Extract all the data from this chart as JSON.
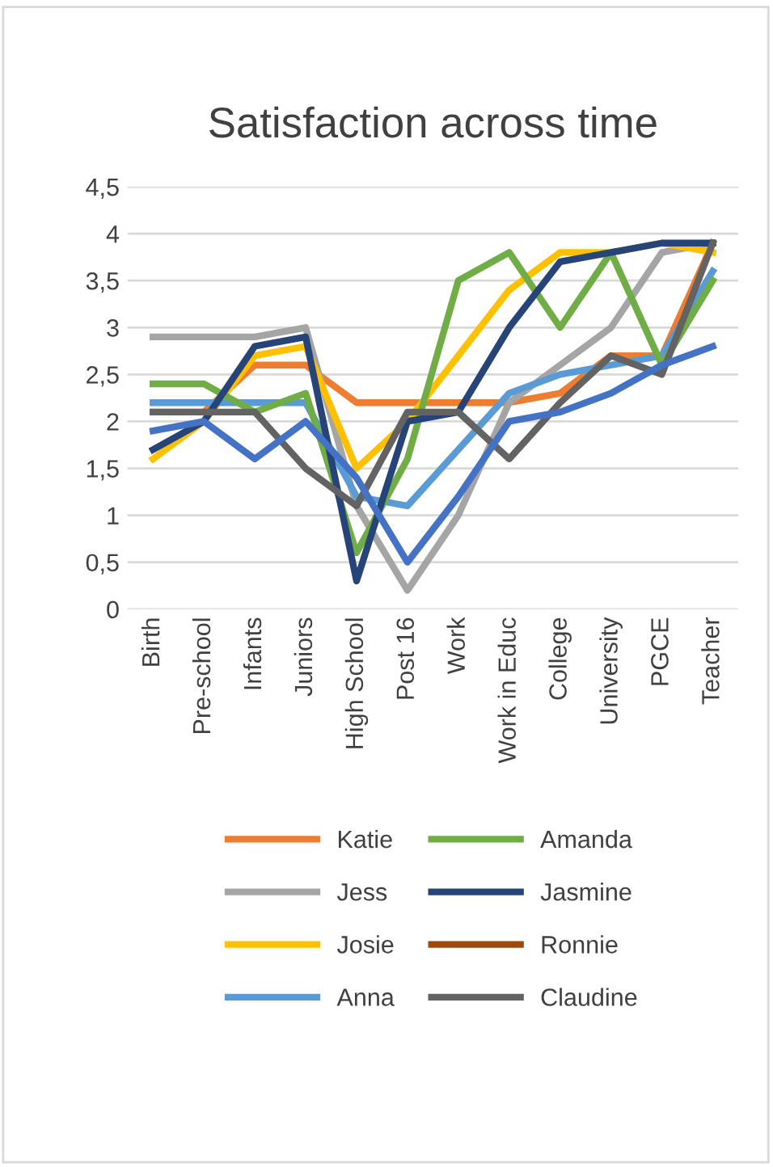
{
  "chart_data": {
    "type": "line",
    "title": "Satisfaction across time",
    "categories": [
      "Birth",
      "Pre-school",
      "Infants",
      "Juniors",
      "High School",
      "Post 16",
      "Work",
      "Work in Educ",
      "College",
      "University",
      "PGCE",
      "Teacher"
    ],
    "series": [
      {
        "name": "Katie",
        "color": "#ed7d31",
        "values": [
          2.1,
          2.1,
          2.6,
          2.6,
          2.2,
          2.2,
          2.2,
          2.2,
          2.3,
          2.7,
          2.7,
          3.9
        ]
      },
      {
        "name": "Jess",
        "color": "#a5a5a5",
        "values": [
          2.9,
          2.9,
          2.9,
          3.0,
          1.1,
          0.2,
          1.0,
          2.2,
          2.6,
          3.0,
          3.8,
          3.9
        ]
      },
      {
        "name": "Josie",
        "color": "#ffc000",
        "values": [
          1.6,
          2.0,
          2.7,
          2.8,
          1.5,
          2.0,
          2.7,
          3.4,
          3.8,
          3.8,
          3.9,
          3.8
        ]
      },
      {
        "name": "Anna",
        "color": "#5b9bd5",
        "values": [
          2.2,
          2.2,
          2.2,
          2.2,
          1.2,
          1.1,
          1.7,
          2.3,
          2.5,
          2.6,
          2.7,
          3.6
        ]
      },
      {
        "name": "Amanda",
        "color": "#70ad47",
        "values": [
          2.4,
          2.4,
          2.1,
          2.3,
          0.6,
          1.6,
          3.5,
          3.8,
          3.0,
          3.8,
          2.6,
          3.5
        ]
      },
      {
        "name": "Jasmine",
        "color": "#264478",
        "values": [
          1.7,
          2.0,
          2.8,
          2.9,
          0.3,
          2.0,
          2.1,
          3.0,
          3.7,
          3.8,
          3.9,
          3.9
        ]
      },
      {
        "name": "Ronnie",
        "color": "#9e480e",
        "values": [
          null,
          null,
          null,
          null,
          null,
          null,
          null,
          null,
          null,
          null,
          null,
          null
        ]
      },
      {
        "name": "Claudine",
        "color": "#636363",
        "values": [
          2.1,
          2.1,
          2.1,
          1.5,
          1.1,
          2.1,
          2.1,
          1.6,
          2.2,
          2.7,
          2.5,
          3.9
        ]
      },
      {
        "color": "#4472c4",
        "values": [
          1.9,
          2.0,
          1.6,
          2.0,
          1.4,
          0.5,
          1.2,
          2.0,
          2.1,
          2.3,
          2.6,
          2.8
        ]
      }
    ],
    "ylim": [
      0,
      4.5
    ],
    "yticks": [
      0,
      {
        "value": 0.5,
        "label": "0,5"
      },
      1,
      {
        "value": 1.5,
        "label": "1,5"
      },
      2,
      {
        "value": 2.5,
        "label": "2,5"
      },
      3,
      {
        "value": 3.5,
        "label": "3,5"
      },
      4,
      {
        "value": 4.5,
        "label": "4,5"
      }
    ],
    "grid": "y",
    "legend": "bottom",
    "marker": "none",
    "line_style": "solid"
  }
}
